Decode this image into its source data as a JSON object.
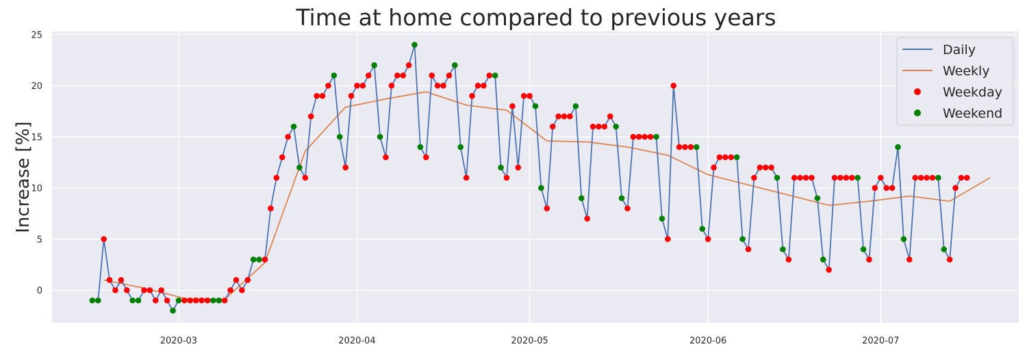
{
  "chart_data": {
    "type": "line",
    "title": "Time at home compared to previous years",
    "xlabel": "",
    "ylabel": "Increase [%]",
    "x_start": "2020-02-15",
    "xlim": [
      "2020-02-08",
      "2020-07-25"
    ],
    "ylim": [
      -3.2,
      25.3
    ],
    "x_ticks": [
      "2020-03-01",
      "2020-04-01",
      "2020-05-01",
      "2020-06-01",
      "2020-07-01"
    ],
    "x_tick_labels": [
      "2020-03",
      "2020-04",
      "2020-05",
      "2020-06",
      "2020-07"
    ],
    "y_ticks": [
      0,
      5,
      10,
      15,
      20,
      25
    ],
    "y_tick_labels": [
      "0",
      "5",
      "10",
      "15",
      "20",
      "25"
    ],
    "grid": true,
    "background": "#eaeaf2",
    "legend_position": "top-right",
    "series": [
      {
        "name": "Daily",
        "kind": "line",
        "color": "#4c72b0",
        "values": [
          -1,
          -1,
          5,
          1,
          0,
          1,
          0,
          -1,
          -1,
          0,
          0,
          -1,
          0,
          -1,
          -2,
          -1,
          -1,
          -1,
          -1,
          -1,
          -1,
          -1,
          -1,
          -1,
          0,
          1,
          0,
          1,
          3,
          3,
          3,
          8,
          11,
          13,
          15,
          16,
          12,
          11,
          17,
          19,
          19,
          20,
          21,
          15,
          12,
          19,
          20,
          20,
          21,
          22,
          15,
          13,
          20,
          21,
          21,
          22,
          24,
          14,
          13,
          21,
          20,
          20,
          21,
          22,
          14,
          11,
          19,
          20,
          20,
          21,
          21,
          12,
          11,
          18,
          12,
          19,
          19,
          18,
          10,
          8,
          16,
          17,
          17,
          17,
          18,
          9,
          7,
          16,
          16,
          16,
          17,
          16,
          9,
          8,
          15,
          15,
          15,
          15,
          15,
          7,
          5,
          20,
          14,
          14,
          14,
          14,
          6,
          5,
          12,
          13,
          13,
          13,
          13,
          5,
          4,
          11,
          12,
          12,
          12,
          11,
          4,
          3,
          11,
          11,
          11,
          11,
          9,
          3,
          2,
          11,
          11,
          11,
          11,
          11,
          4,
          3,
          10,
          11,
          10,
          10,
          14,
          5,
          3,
          11,
          11,
          11,
          11,
          11,
          4,
          3,
          10,
          11,
          11
        ]
      },
      {
        "name": "Weekly",
        "kind": "line",
        "color": "#dd8452",
        "x": [
          "2020-02-17",
          "2020-02-24",
          "2020-03-02",
          "2020-03-09",
          "2020-03-16",
          "2020-03-23",
          "2020-03-30",
          "2020-04-06",
          "2020-04-13",
          "2020-04-20",
          "2020-04-27",
          "2020-05-04",
          "2020-05-11",
          "2020-05-18",
          "2020-05-25",
          "2020-06-01",
          "2020-06-08",
          "2020-06-15",
          "2020-06-22",
          "2020-06-29",
          "2020-07-06",
          "2020-07-13",
          "2020-07-20"
        ],
        "values": [
          1.0,
          0.2,
          -0.8,
          -0.9,
          2.7,
          13.6,
          17.9,
          18.7,
          19.4,
          18.1,
          17.6,
          14.6,
          14.5,
          14.0,
          13.2,
          11.3,
          10.3,
          9.3,
          8.3,
          8.7,
          9.2,
          8.7,
          11.0
        ]
      },
      {
        "name": "Weekday",
        "kind": "scatter",
        "color": "#ff0000"
      },
      {
        "name": "Weekend",
        "kind": "scatter",
        "color": "#008000"
      }
    ]
  }
}
